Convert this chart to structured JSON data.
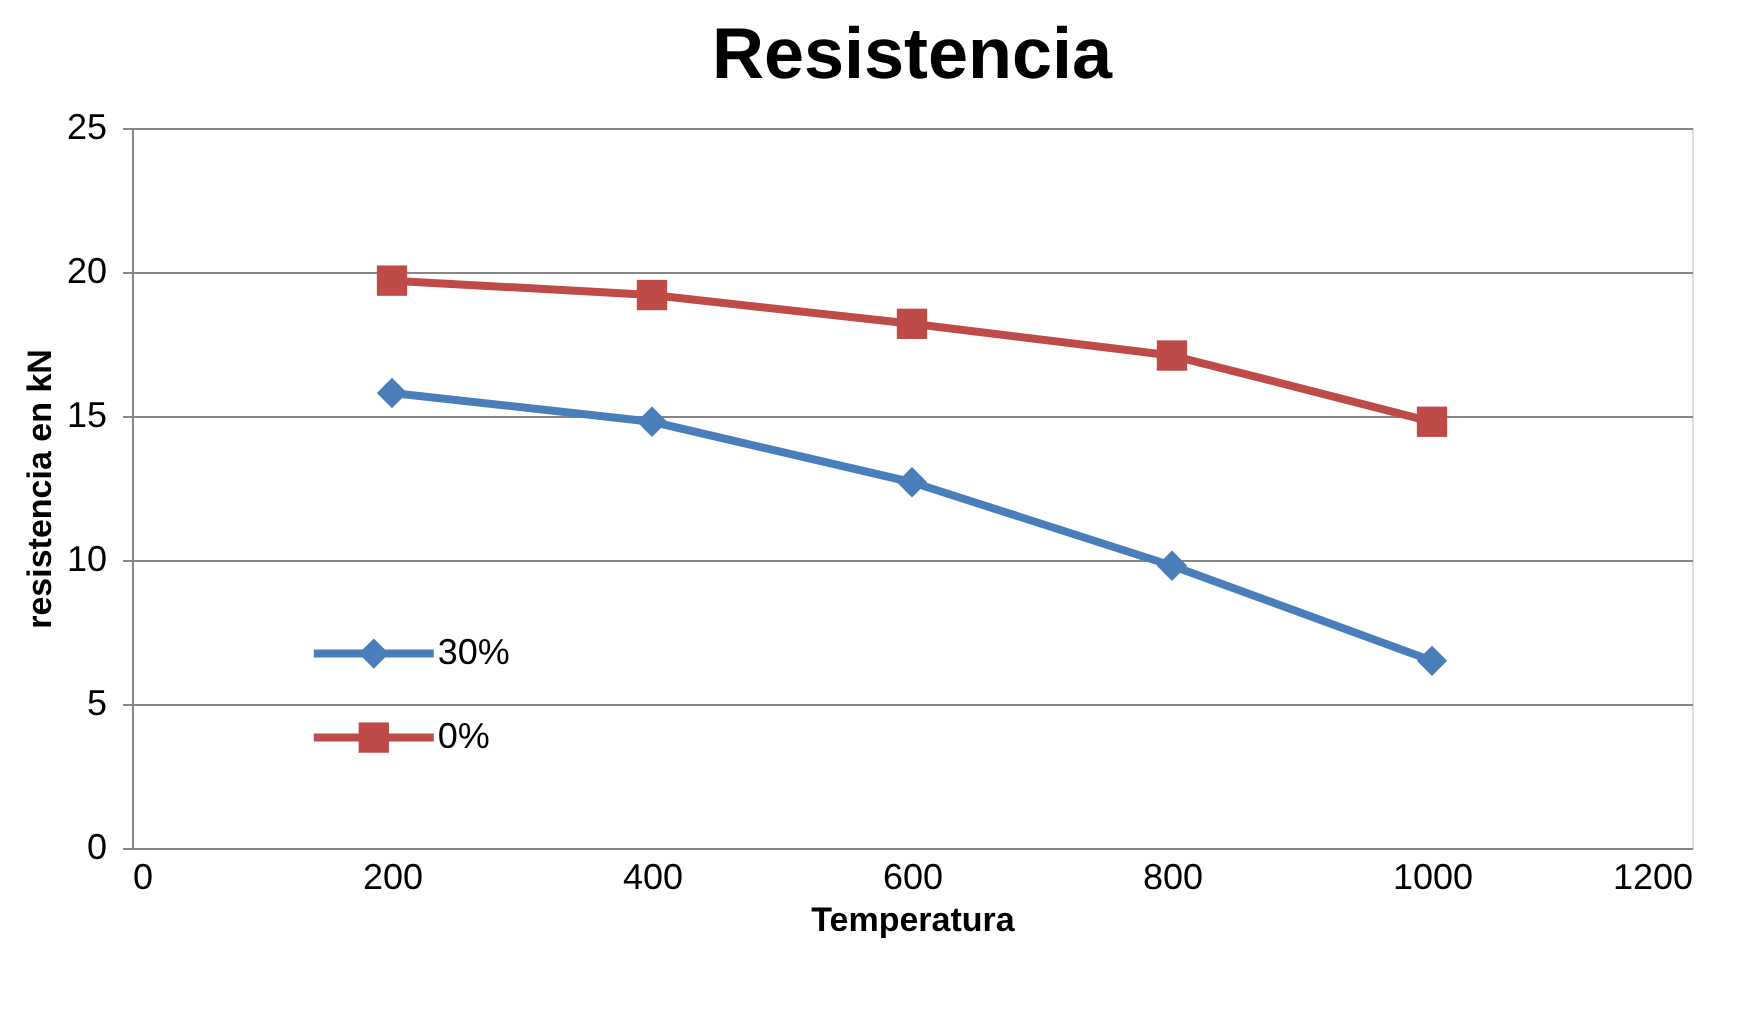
{
  "chart_data": {
    "type": "line",
    "title": "Resistencia",
    "xlabel": "Temperatura",
    "ylabel": "resistencia en kN",
    "x": [
      200,
      400,
      600,
      800,
      1000
    ],
    "series": [
      {
        "name": "30%",
        "color": "#4a7ebb",
        "marker": "diamond",
        "values": [
          15.8,
          14.8,
          12.7,
          9.8,
          6.5
        ]
      },
      {
        "name": "0%",
        "color": "#be4b48",
        "marker": "square",
        "values": [
          19.7,
          19.2,
          18.2,
          17.1,
          14.8
        ]
      }
    ],
    "xlim": [
      0,
      1200
    ],
    "xticks": [
      0,
      200,
      400,
      600,
      800,
      1000,
      1200
    ],
    "ylim": [
      0,
      25
    ],
    "yticks": [
      0,
      5,
      10,
      15,
      20,
      25
    ],
    "grid": "y",
    "legend": "bottom left",
    "line_style": "solid"
  }
}
